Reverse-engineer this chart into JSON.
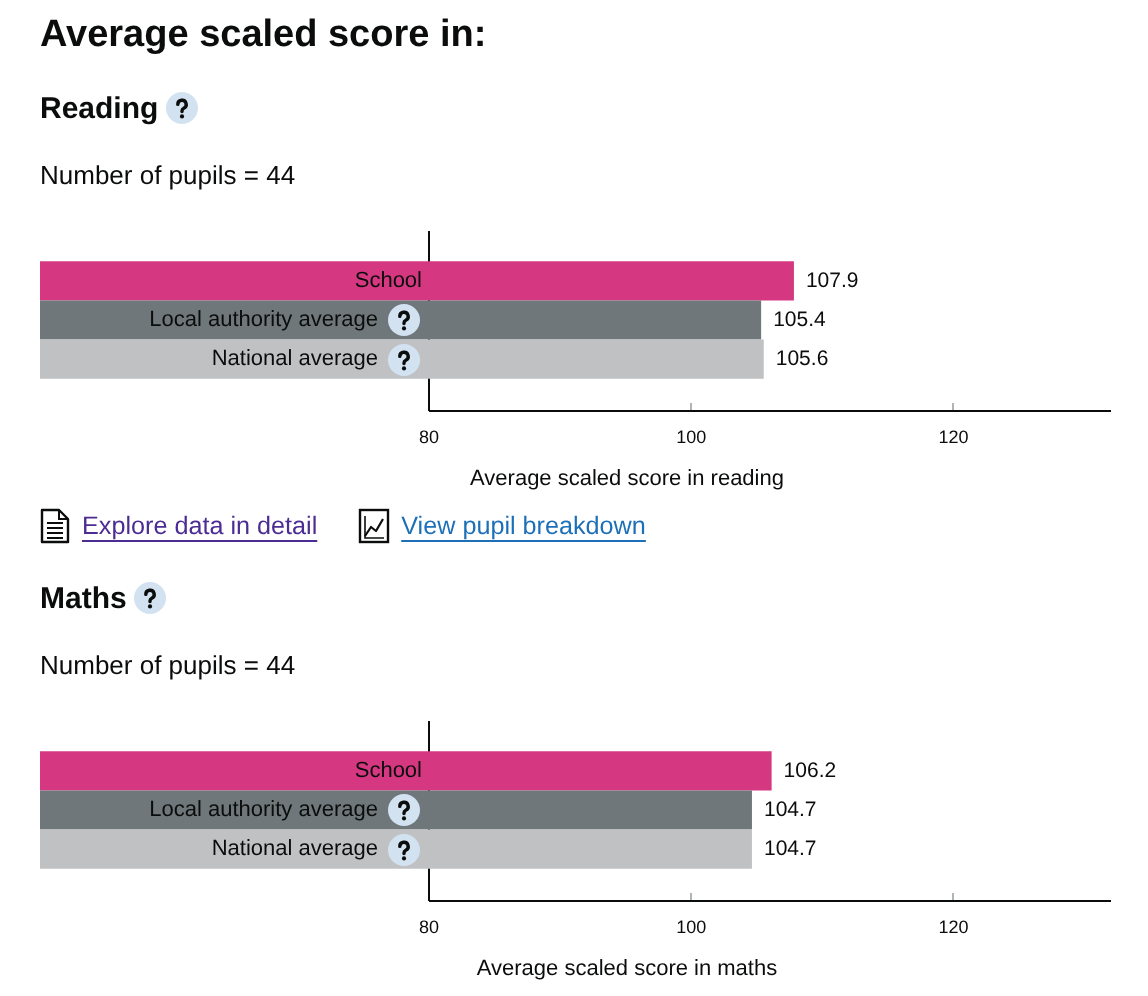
{
  "chart_data": [
    {
      "type": "other",
      "title": "Average scaled score in:"
    },
    {
      "type": "bar",
      "title": "Reading",
      "subtitle": "Number of pupils = 44",
      "orientation": "horizontal",
      "categories": [
        "School",
        "Local authority average",
        "National average"
      ],
      "values": [
        107.9,
        105.4,
        105.6
      ],
      "colors": [
        "#d53880",
        "#6f777b",
        "#bfc1c3"
      ],
      "data_labels": true,
      "xlim": [
        80,
        132
      ],
      "xticks": [
        80,
        100,
        120
      ],
      "xlabel": "Average scaled score in reading",
      "annotations": [
        "Explore data in detail",
        "View pupil breakdown"
      ]
    },
    {
      "type": "bar",
      "title": "Maths",
      "subtitle": "Number of pupils = 44",
      "orientation": "horizontal",
      "categories": [
        "School",
        "Local authority average",
        "National average"
      ],
      "values": [
        106.2,
        104.7,
        104.7
      ],
      "colors": [
        "#d53880",
        "#6f777b",
        "#bfc1c3"
      ],
      "data_labels": true,
      "xlim": [
        80,
        132
      ],
      "xticks": [
        80,
        100,
        120
      ],
      "xlabel": "Average scaled score in maths"
    }
  ]
}
